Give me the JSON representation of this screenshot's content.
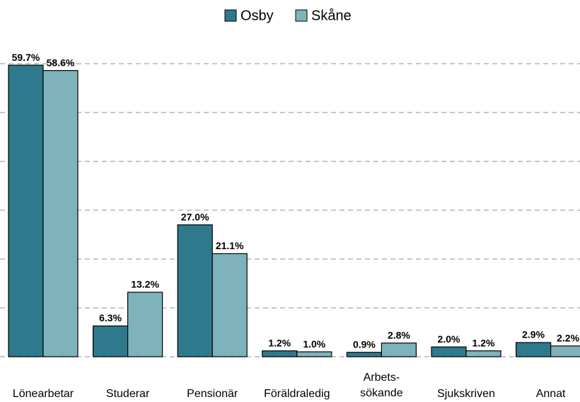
{
  "chart_data": {
    "type": "bar",
    "categories": [
      "Lönearbetar",
      "Studerar",
      "Pensionär",
      "Föräldraledig",
      "Arbets-\nsökande",
      "Sjukskriven",
      "Annat"
    ],
    "series": [
      {
        "name": "Osby",
        "color": "#2e7a8c",
        "values": [
          59.7,
          6.3,
          27.0,
          1.2,
          0.9,
          2.0,
          2.9
        ],
        "value_labels": [
          "59.7%",
          "6.3%",
          "27.0%",
          "1.2%",
          "0.9%",
          "2.0%",
          "2.9%"
        ]
      },
      {
        "name": "Skåne",
        "color": "#7fb3bc",
        "values": [
          58.6,
          13.2,
          21.1,
          1.0,
          2.8,
          1.2,
          2.2
        ],
        "value_labels": [
          "58.6%",
          "13.2%",
          "21.1%",
          "1.0%",
          "2.8%",
          "1.2%",
          "2.2%"
        ]
      }
    ],
    "ylim": [
      0,
      60
    ],
    "yticks": [
      0,
      10,
      20,
      30,
      40,
      50,
      60
    ],
    "grid": true,
    "legend": "top"
  }
}
